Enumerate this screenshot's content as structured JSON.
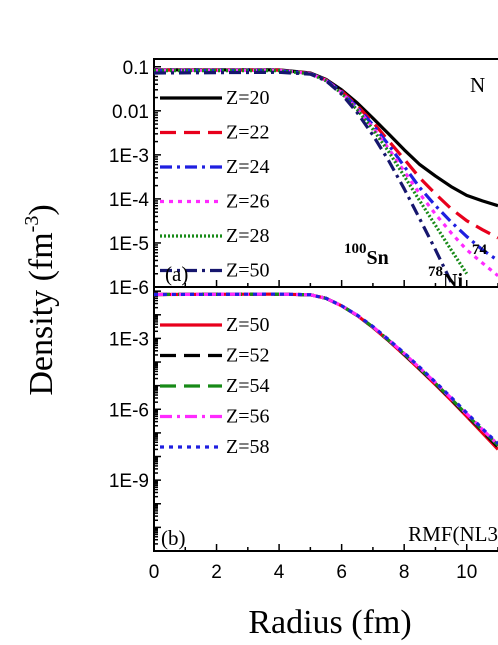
{
  "chart_data": [
    {
      "panel": "(a)",
      "type": "line",
      "scale": "log",
      "ylim": [
        1e-06,
        0.15
      ],
      "xlim": [
        0,
        11
      ],
      "y_ticks": [
        0.1,
        0.01,
        0.001,
        0.0001,
        1e-05,
        1e-06
      ],
      "y_tick_labels": [
        "0.1",
        "0.01",
        "1E-3",
        "1E-4",
        "1E-5",
        "1E-6"
      ],
      "corner_text": "N",
      "annotations": [
        {
          "mass": "100",
          "symbol": "Sn"
        },
        {
          "mass": "78",
          "symbol": "Ni"
        },
        {
          "mass": "74",
          "symbol": ""
        }
      ],
      "series": [
        {
          "name": "Z=20",
          "color": "#000000",
          "dash": "solid",
          "x": [
            0,
            4,
            5,
            5.5,
            6,
            6.5,
            7,
            7.5,
            8,
            8.5,
            9,
            9.5,
            10,
            10.5,
            11
          ],
          "y": [
            0.085,
            0.085,
            0.072,
            0.052,
            0.03,
            0.015,
            0.0068,
            0.003,
            0.0013,
            0.0006,
            0.00033,
            0.00019,
            0.00012,
            9e-05,
            7e-05
          ]
        },
        {
          "name": "Z=22",
          "color": "#e8001c",
          "dash": "dash",
          "x": [
            0,
            4,
            5,
            5.5,
            6,
            6.5,
            7,
            7.5,
            8,
            8.5,
            9,
            9.5,
            10,
            10.5,
            11
          ],
          "y": [
            0.084,
            0.084,
            0.071,
            0.05,
            0.028,
            0.013,
            0.0055,
            0.0021,
            0.0008,
            0.0003,
            0.00013,
            6e-05,
            3.2e-05,
            2e-05,
            1.3e-05
          ]
        },
        {
          "name": "Z=24",
          "color": "#1f1fe0",
          "dash": "dashdot",
          "x": [
            0,
            4,
            5,
            5.5,
            6,
            6.5,
            7,
            7.5,
            8,
            8.5,
            9,
            9.5,
            10,
            10.5,
            11
          ],
          "y": [
            0.083,
            0.083,
            0.07,
            0.05,
            0.027,
            0.012,
            0.0048,
            0.0017,
            0.00055,
            0.00018,
            7e-05,
            3e-05,
            1.4e-05,
            7e-06,
            4e-06
          ]
        },
        {
          "name": "Z=26",
          "color": "#ff2aff",
          "dash": "dot",
          "x": [
            0,
            4,
            5,
            5.5,
            6,
            6.5,
            7,
            7.5,
            8,
            8.5,
            9,
            9.5,
            10,
            10.5,
            11
          ],
          "y": [
            0.083,
            0.083,
            0.07,
            0.049,
            0.026,
            0.011,
            0.0042,
            0.0014,
            0.00042,
            0.00013,
            4.5e-05,
            1.7e-05,
            7e-06,
            3.5e-06,
            1.8e-06
          ]
        },
        {
          "name": "Z=28",
          "color": "#178a17",
          "dash": "densedot",
          "x": [
            0,
            4,
            5,
            5.5,
            6,
            6.5,
            7,
            7.5,
            8,
            8.5,
            9,
            9.5,
            10
          ],
          "y": [
            0.082,
            0.082,
            0.069,
            0.048,
            0.025,
            0.0105,
            0.0038,
            0.0012,
            0.00033,
            9e-05,
            2.5e-05,
            7e-06,
            2e-06
          ]
        },
        {
          "name": "Z=50",
          "color": "#16166e",
          "dash": "dashdot",
          "x": [
            0,
            4,
            5,
            5.5,
            6,
            6.5,
            7,
            7.5,
            8,
            8.5,
            9,
            9.5
          ],
          "y": [
            0.072,
            0.075,
            0.068,
            0.048,
            0.024,
            0.009,
            0.0028,
            0.00075,
            0.00017,
            3.5e-05,
            7e-06,
            1.3e-06
          ]
        }
      ]
    },
    {
      "panel": "(b)",
      "type": "line",
      "scale": "log",
      "ylim": [
        1e-12,
        0.15
      ],
      "xlim": [
        0,
        11
      ],
      "y_ticks": [
        0.001,
        1e-06,
        1e-09
      ],
      "y_tick_labels": [
        "1E-3",
        "1E-6",
        "1E-9"
      ],
      "x_ticks": [
        0,
        2,
        4,
        6,
        8,
        10
      ],
      "x_tick_labels": [
        "0",
        "2",
        "4",
        "6",
        "8",
        "10"
      ],
      "corner_text": "RMF(NL3",
      "series": [
        {
          "name": "Z=50",
          "color": "#e8001c",
          "dash": "solid",
          "x": [
            0,
            4,
            5,
            5.5,
            6,
            6.5,
            7,
            7.5,
            8,
            8.5,
            9,
            9.5,
            10,
            10.5,
            11
          ],
          "y": [
            0.072,
            0.075,
            0.07,
            0.05,
            0.024,
            0.0092,
            0.0029,
            0.0008,
            0.0002,
            4.8e-05,
            1.1e-05,
            2.4e-06,
            5e-07,
            1e-07,
            2e-08
          ]
        },
        {
          "name": "Z=52",
          "color": "#000000",
          "dash": "dash",
          "x": [
            0,
            4,
            5,
            5.5,
            6,
            6.5,
            7,
            7.5,
            8,
            8.5,
            9,
            9.5,
            10,
            10.5,
            11
          ],
          "y": [
            0.072,
            0.075,
            0.07,
            0.05,
            0.024,
            0.0093,
            0.003,
            0.00083,
            0.00021,
            5e-05,
            1.18e-05,
            2.6e-06,
            5.5e-07,
            1.2e-07,
            2.5e-08
          ]
        },
        {
          "name": "Z=54",
          "color": "#178a17",
          "dash": "dash",
          "x": [
            0,
            4,
            5,
            5.5,
            6,
            6.5,
            7,
            7.5,
            8,
            8.5,
            9,
            9.5,
            10,
            10.5,
            11
          ],
          "y": [
            0.072,
            0.075,
            0.07,
            0.05,
            0.024,
            0.0094,
            0.003,
            0.00085,
            0.00022,
            5.3e-05,
            1.25e-05,
            2.8e-06,
            6e-07,
            1.3e-07,
            3e-08
          ]
        },
        {
          "name": "Z=56",
          "color": "#ff2aff",
          "dash": "dashdot",
          "x": [
            0,
            4,
            5,
            5.5,
            6,
            6.5,
            7,
            7.5,
            8,
            8.5,
            9,
            9.5,
            10,
            10.5,
            11
          ],
          "y": [
            0.072,
            0.075,
            0.07,
            0.05,
            0.024,
            0.0095,
            0.0031,
            0.00088,
            0.00023,
            5.6e-05,
            1.33e-05,
            3e-06,
            6.5e-07,
            1.4e-07,
            3.2e-08
          ]
        },
        {
          "name": "Z=58",
          "color": "#1f1fe0",
          "dash": "dot",
          "x": [
            0,
            4,
            5,
            5.5,
            6,
            6.5,
            7,
            7.5,
            8,
            8.5,
            9,
            9.5,
            10,
            10.5,
            11
          ],
          "y": [
            0.072,
            0.075,
            0.07,
            0.05,
            0.024,
            0.0096,
            0.0032,
            0.0009,
            0.00024,
            6e-05,
            1.4e-05,
            3.2e-06,
            7e-07,
            1.5e-07,
            3.5e-08
          ]
        }
      ]
    }
  ],
  "axes": {
    "ylabel": "Density (fm",
    "ylabel_exp": "-3",
    "ylabel_close": ")",
    "xlabel": "Radius (fm)"
  }
}
